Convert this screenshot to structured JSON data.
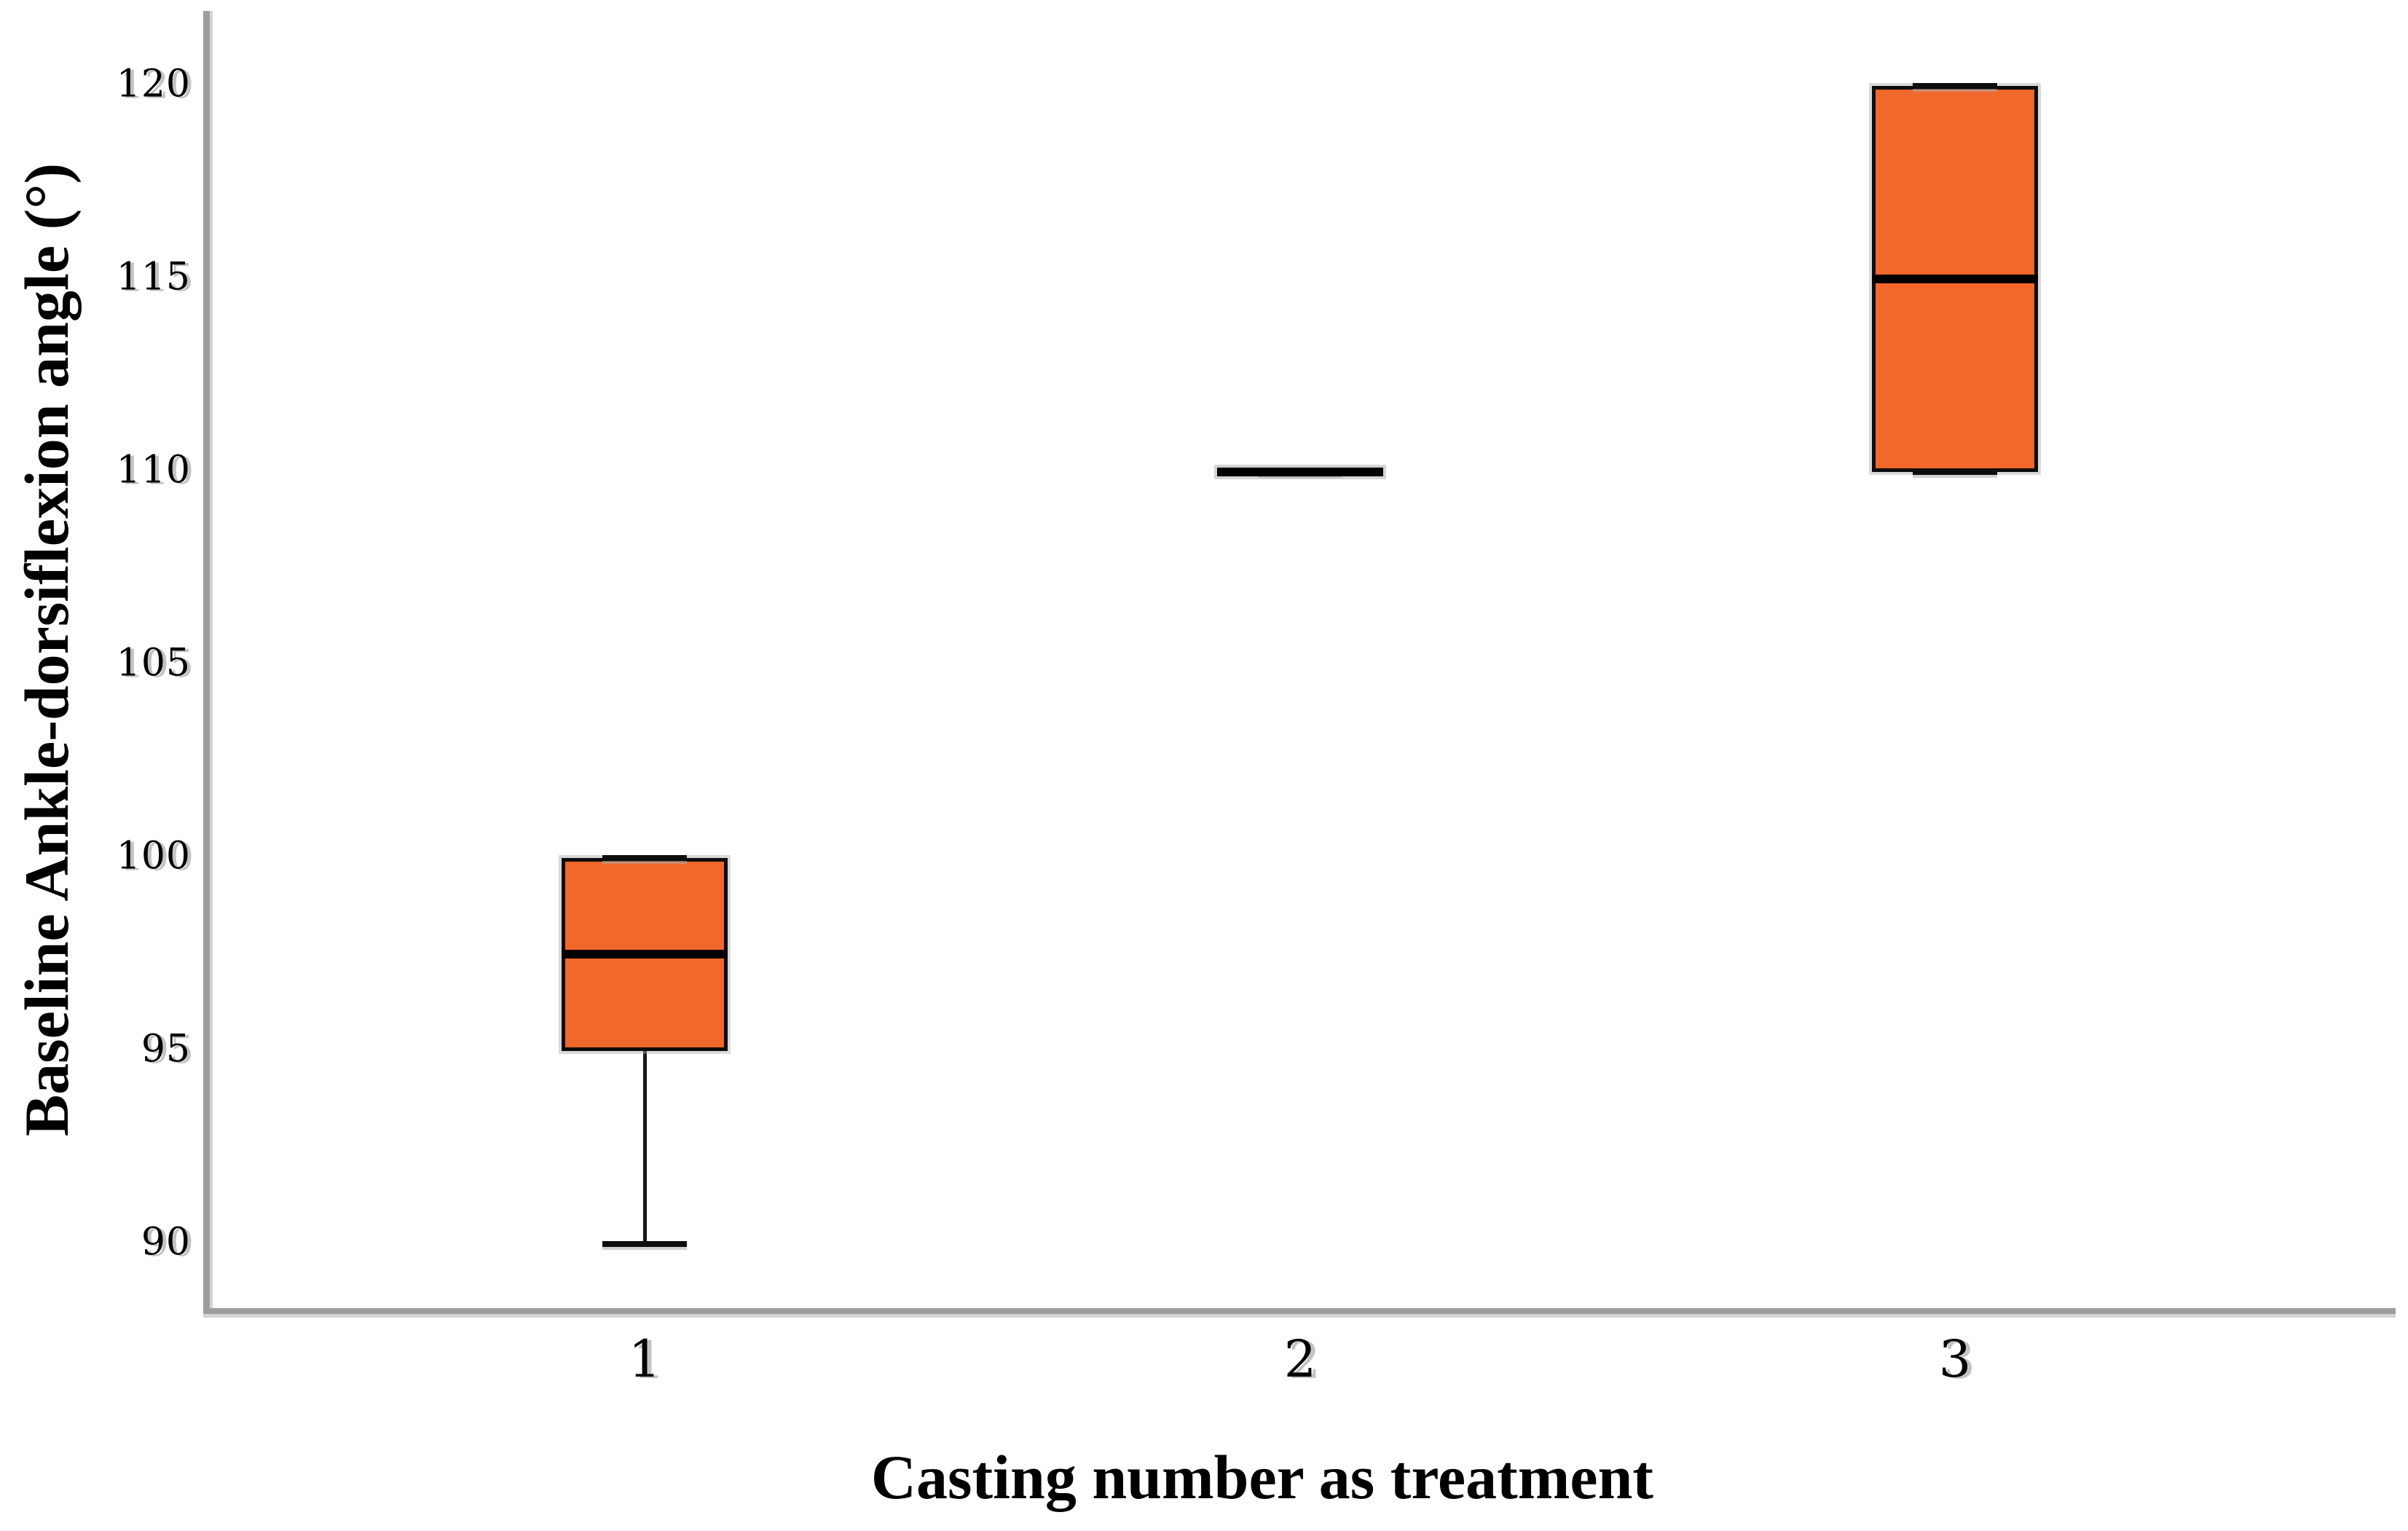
{
  "figure": {
    "background": "#ffffff"
  },
  "chart_data": {
    "type": "boxplot",
    "title": "",
    "xlabel": "Casting number as treatment",
    "ylabel": "Baseline Ankle-dorsiflexion angle (°)",
    "categories": [
      "1",
      "2",
      "3"
    ],
    "yticks": [
      90,
      95,
      100,
      105,
      110,
      115,
      120
    ],
    "ylim": [
      88.34,
      121.94
    ],
    "grid": false,
    "legend": null,
    "series": [
      {
        "category": "1",
        "min": 90,
        "q1": 95,
        "median": 97.5,
        "q3": 100,
        "max": 100
      },
      {
        "category": "2",
        "min": 110,
        "q1": 110,
        "median": 110,
        "q3": 110,
        "max": 110
      },
      {
        "category": "3",
        "min": 110,
        "q1": 110,
        "median": 115,
        "q3": 120,
        "max": 120
      }
    ],
    "colors": {
      "box_fill": "#f2672a",
      "box_border": "#0d0d0d",
      "median": "#000000",
      "whisker": "#151515",
      "axis_line": "#9e9e9e",
      "axis_shadow": "#d4d4d4",
      "tick_text": "#000000",
      "label_text": "#000000"
    }
  }
}
